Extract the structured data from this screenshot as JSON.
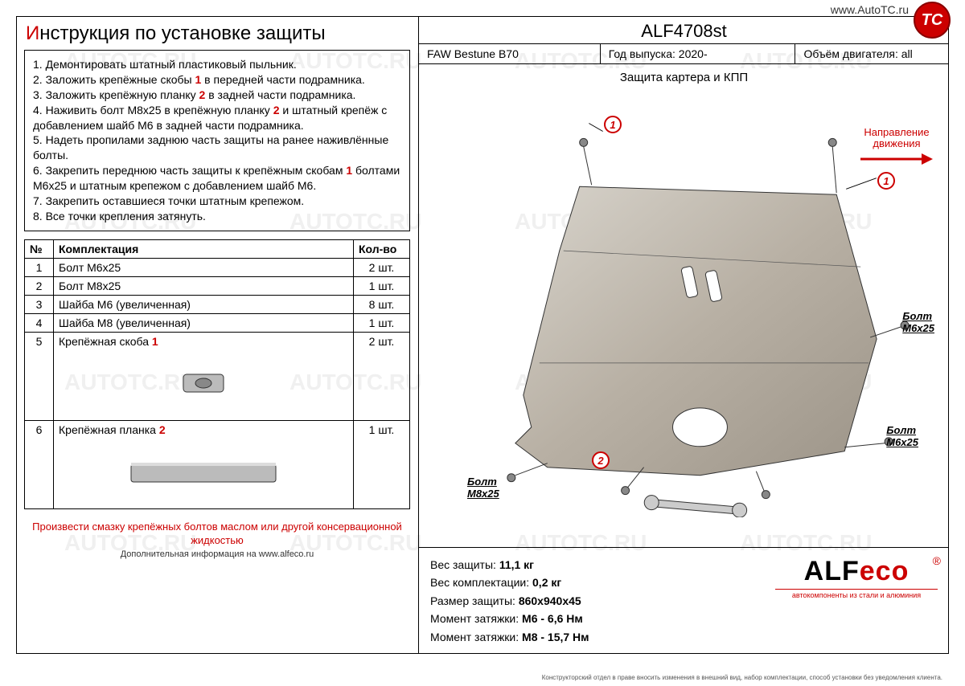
{
  "watermark_text": "AUTOTC.RU",
  "top_url": "www.AutoTC.ru",
  "tc_badge": "TC",
  "title_prefix": "И",
  "title_rest": "нструкция по установке защиты",
  "instructions": [
    {
      "n": "1",
      "text": "Демонтировать штатный пластиковый пыльник."
    },
    {
      "n": "2",
      "text": "Заложить крепёжные скобы ",
      "ref": "1",
      "tail": " в передней части подрамника."
    },
    {
      "n": "3",
      "text": "Заложить крепёжную планку ",
      "ref": "2",
      "tail": " в задней части подрамника."
    },
    {
      "n": "4",
      "text": "Наживить болт М8х25 в крепёжную планку ",
      "ref": "2",
      "tail": " и штатный крепёж с добавлением шайб М6 в задней части подрамника."
    },
    {
      "n": "5",
      "text": "Надеть пропилами заднюю часть защиты на ранее наживлённые болты."
    },
    {
      "n": "6",
      "text": "Закрепить переднюю часть защиты к крепёжным скобам ",
      "ref": "1",
      "tail": " болтами М6х25 и штатным крепежом с добавлением шайб М6."
    },
    {
      "n": "7",
      "text": "Закрепить оставшиеся точки штатным крепежом."
    },
    {
      "n": "8",
      "text": "Все точки крепления затянуть."
    }
  ],
  "table_headers": {
    "num": "№",
    "name": "Комплектация",
    "qty": "Кол-во"
  },
  "parts": [
    {
      "num": "1",
      "name": "Болт М6х25",
      "qty": "2 шт."
    },
    {
      "num": "2",
      "name": "Болт М8х25",
      "qty": "1 шт."
    },
    {
      "num": "3",
      "name": "Шайба М6 (увеличенная)",
      "qty": "8 шт."
    },
    {
      "num": "4",
      "name": "Шайба М8 (увеличенная)",
      "qty": "1 шт."
    },
    {
      "num": "5",
      "name": "Крепёжная скоба ",
      "ref": "1",
      "qty": "2 шт.",
      "img": "clip"
    },
    {
      "num": "6",
      "name": "Крепёжная планка ",
      "ref": "2",
      "qty": "1 шт.",
      "img": "bar"
    }
  ],
  "footer_note": "Произвести смазку крепёжных болтов маслом или другой консервационной жидкостью",
  "footer_sub": "Дополнительная информация на www.alfeco.ru",
  "product_code": "ALF4708st",
  "meta": {
    "model_label": "FAW Bestune B70",
    "year_label": "Год выпуска:",
    "year_val": "2020-",
    "engine_label": "Объём двигателя:",
    "engine_val": "all"
  },
  "subtitle": "Защита картера и КПП",
  "direction": {
    "l1": "Направление",
    "l2": "движения"
  },
  "callouts": {
    "c1": "1",
    "c2": "1",
    "c3": "2"
  },
  "bolt_labels": {
    "b1": "Болт",
    "b1s": "М6х25",
    "b2": "Болт",
    "b2s": "М6х25",
    "b3": "Болт",
    "b3s": "М8х25"
  },
  "specs": {
    "weight_l": "Вес защиты:",
    "weight_v": "11,1 кг",
    "kit_l": "Вес комплектации:",
    "kit_v": "0,2 кг",
    "size_l": "Размер защиты:",
    "size_v": "860х940х45",
    "tq1_l": "Момент затяжки:",
    "tq1_v": "М6 - 6,6 Нм",
    "tq2_l": "Момент затяжки:",
    "tq2_v": "М8 - 15,7 Нм"
  },
  "logo": {
    "alf": "ALF",
    "eco": "eco",
    "sub": "автокомпоненты из стали и алюминия",
    "reg": "®"
  },
  "disclaimer": "Конструкторский отдел в праве вносить изменения в внешний вид, набор комплектации, способ установки без уведомления клиента."
}
